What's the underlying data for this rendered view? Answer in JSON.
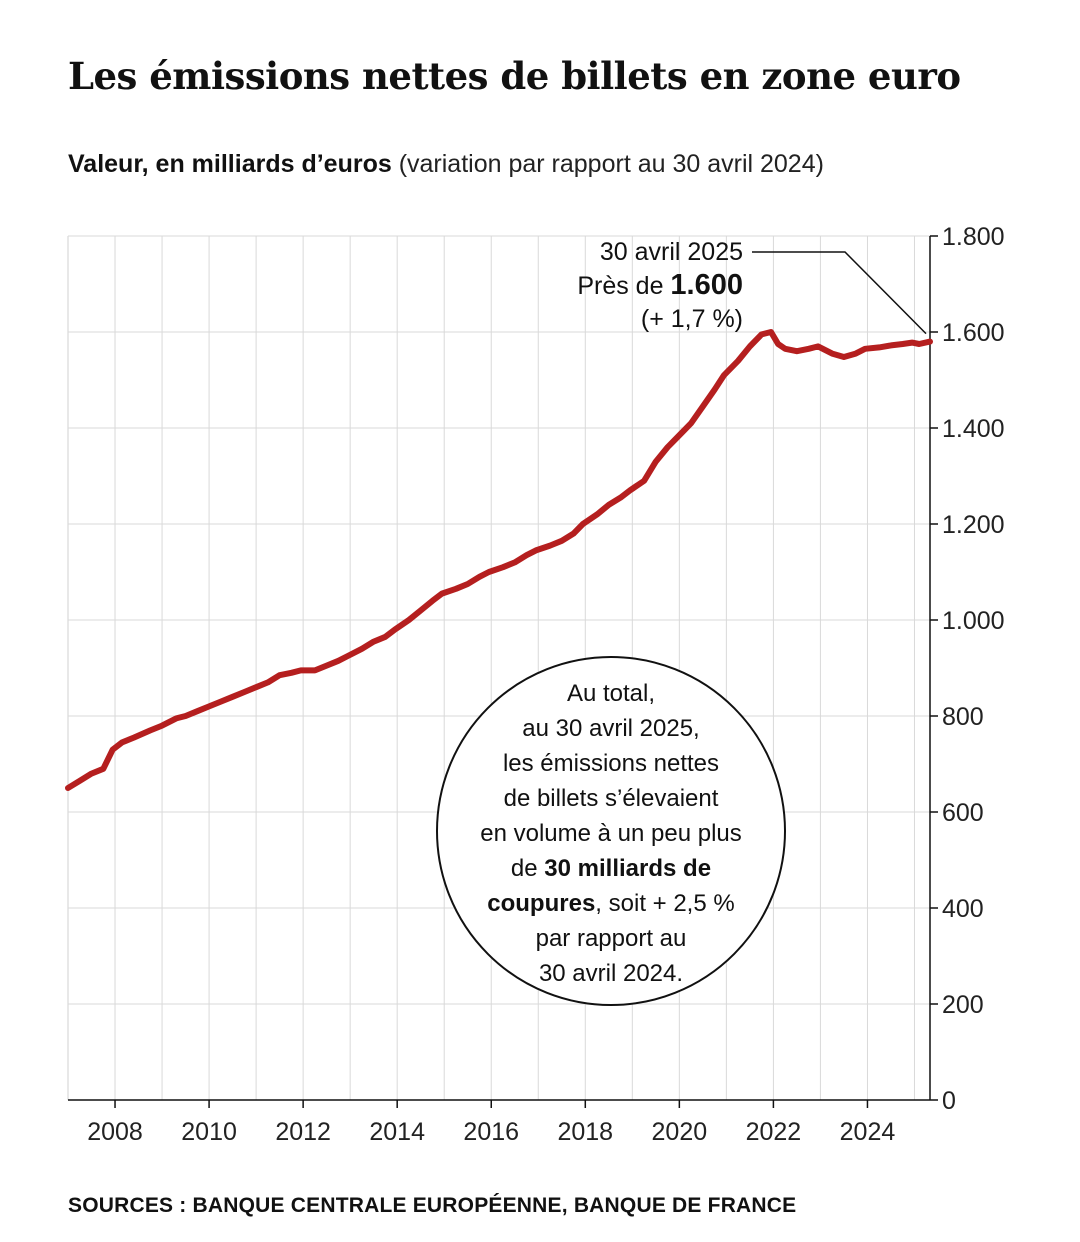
{
  "title": "Les émissions nettes de billets en zone euro",
  "subtitle": {
    "bold": "Valeur, en milliards d’euros",
    "light": "(variation par rapport au 30 avril 2024)"
  },
  "annotation": {
    "date": "30 avril 2025",
    "prefix": "Près de ",
    "value": "1.600",
    "change": "(+ 1,7 %)"
  },
  "bubble": {
    "lines_before": [
      "Au total,",
      "au 30 avril 2025,",
      "les émissions nettes",
      "de billets s’élevaient",
      "en volume à un peu plus"
    ],
    "de": "de ",
    "bold1": "30 milliards de",
    "bold2": "coupures",
    "rest": ", soit + 2,5 %",
    "lines_after": [
      "par rapport au",
      "30 avril 2024."
    ]
  },
  "sources": "SOURCES : BANQUE CENTRALE EUROPÉENNE, BANQUE DE FRANCE",
  "colors": {
    "line": "#b51f1f",
    "grid": "#d9d9d9",
    "axis": "#111111"
  },
  "chart_data": {
    "type": "line",
    "title": "Les émissions nettes de billets en zone euro",
    "ylabel": "Valeur, en milliards d’euros",
    "xlabel": "",
    "ylim": [
      0,
      1800
    ],
    "xlim": [
      2007.0,
      2025.33
    ],
    "grid": true,
    "y_ticks": [
      0,
      200,
      400,
      600,
      800,
      1000,
      1200,
      1400,
      1600,
      1800
    ],
    "y_tick_labels": [
      "0",
      "200",
      "400",
      "600",
      "800",
      "1.000",
      "1.200",
      "1.400",
      "1.600",
      "1.800"
    ],
    "x_tick_labels": [
      {
        "year": 2008,
        "label": "2008"
      },
      {
        "year": 2010,
        "label": "2010"
      },
      {
        "year": 2012,
        "label": "2012"
      },
      {
        "year": 2014,
        "label": "2014"
      },
      {
        "year": 2016,
        "label": "2016"
      },
      {
        "year": 2018,
        "label": "2018"
      },
      {
        "year": 2020,
        "label": "2020"
      },
      {
        "year": 2022,
        "label": "2022"
      },
      {
        "year": 2024,
        "label": "2024"
      }
    ],
    "series": [
      {
        "x": [
          2007.0,
          2007.25,
          2007.5,
          2007.75,
          2007.95,
          2008.15,
          2008.4,
          2008.75,
          2009.0,
          2009.3,
          2009.5,
          2009.75,
          2010.0,
          2010.25,
          2010.5,
          2010.75,
          2011.0,
          2011.25,
          2011.5,
          2011.75,
          2011.95,
          2012.25,
          2012.5,
          2012.75,
          2012.95,
          2013.25,
          2013.5,
          2013.75,
          2013.95,
          2014.25,
          2014.5,
          2014.75,
          2014.95,
          2015.25,
          2015.5,
          2015.75,
          2015.95,
          2016.25,
          2016.5,
          2016.75,
          2016.95,
          2017.25,
          2017.5,
          2017.75,
          2017.95,
          2018.25,
          2018.5,
          2018.75,
          2018.95,
          2019.25,
          2019.5,
          2019.75,
          2019.95,
          2020.1,
          2020.25,
          2020.5,
          2020.75,
          2020.95,
          2021.25,
          2021.5,
          2021.75,
          2021.95,
          2022.1,
          2022.25,
          2022.5,
          2022.75,
          2022.95,
          2023.25,
          2023.5,
          2023.75,
          2023.95,
          2024.25,
          2024.5,
          2024.75,
          2024.95,
          2025.1,
          2025.33
        ],
        "y": [
          650,
          665,
          680,
          690,
          730,
          745,
          755,
          770,
          780,
          795,
          800,
          810,
          820,
          830,
          840,
          850,
          860,
          870,
          885,
          890,
          895,
          895,
          905,
          915,
          925,
          940,
          955,
          965,
          980,
          1000,
          1020,
          1040,
          1055,
          1065,
          1075,
          1090,
          1100,
          1110,
          1120,
          1135,
          1145,
          1155,
          1165,
          1180,
          1200,
          1220,
          1240,
          1255,
          1270,
          1290,
          1330,
          1360,
          1380,
          1395,
          1410,
          1445,
          1480,
          1510,
          1540,
          1570,
          1595,
          1600,
          1575,
          1565,
          1560,
          1565,
          1570,
          1555,
          1548,
          1555,
          1565,
          1568,
          1572,
          1575,
          1578,
          1575,
          1580
        ]
      }
    ]
  }
}
